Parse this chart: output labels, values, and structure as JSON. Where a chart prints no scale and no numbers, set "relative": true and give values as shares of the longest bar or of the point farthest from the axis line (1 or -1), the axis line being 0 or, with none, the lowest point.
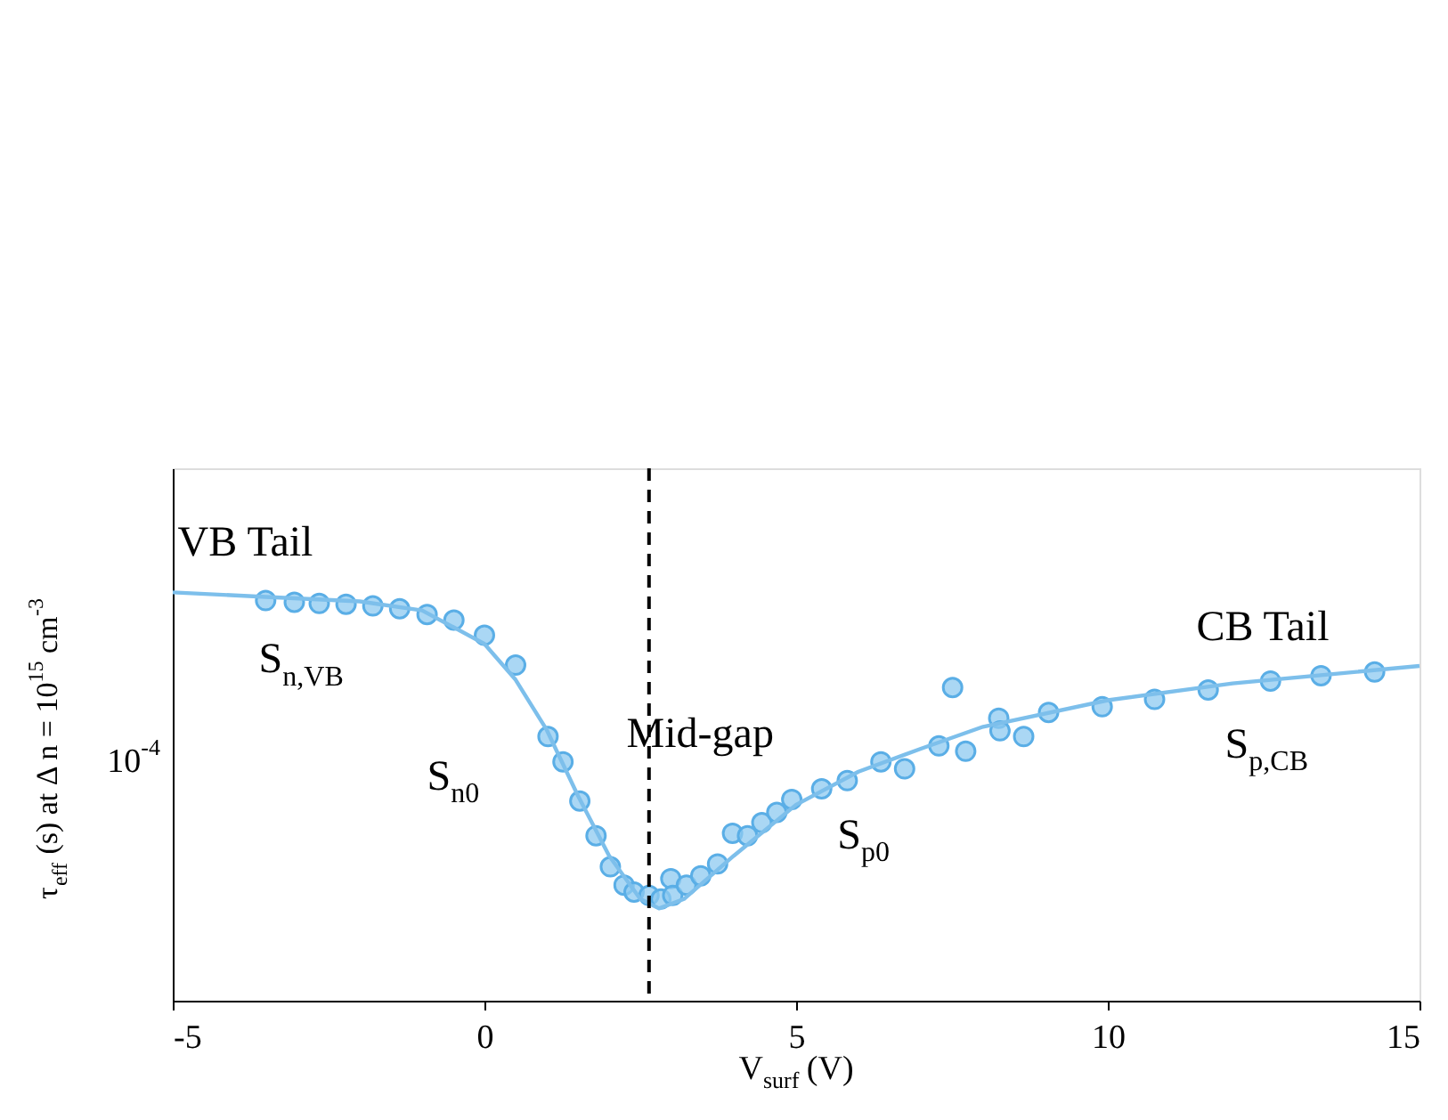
{
  "chart_data": {
    "type": "scatter",
    "xlabel": "V$_{surf}$ (V)",
    "ylabel": "τ$_{eff}$ (s) at Δ n = 10$^{15}$ cm$^{-3}$",
    "relative": true,
    "tick_labels": "x",
    "xlim": [
      -5,
      15
    ],
    "xticks": [
      -5,
      0,
      5,
      10,
      15
    ],
    "grid": false,
    "series": [
      {
        "marker": "circle",
        "color": "#8ec9f0",
        "x": [
          -3.51,
          -3.05,
          -2.65,
          -2.22,
          -1.79,
          -1.36,
          -0.92,
          -0.49,
          0.0,
          0.5,
          1.02,
          1.26,
          1.53,
          1.79,
          2.02,
          2.24,
          2.4,
          2.64,
          2.83,
          2.99,
          3.02,
          3.24,
          3.47,
          3.74,
          3.98,
          4.22,
          4.45,
          4.69,
          4.93,
          5.41,
          5.82,
          6.36,
          6.74,
          7.29,
          7.51,
          7.72,
          8.25,
          8.27,
          8.65,
          9.05,
          9.91,
          10.75,
          11.61,
          12.61,
          13.42,
          14.28
        ],
        "values": [
          0.98,
          0.976,
          0.973,
          0.971,
          0.967,
          0.96,
          0.946,
          0.932,
          0.895,
          0.822,
          0.647,
          0.585,
          0.489,
          0.404,
          0.328,
          0.283,
          0.266,
          0.258,
          0.249,
          0.299,
          0.258,
          0.283,
          0.306,
          0.335,
          0.41,
          0.404,
          0.436,
          0.461,
          0.493,
          0.519,
          0.539,
          0.585,
          0.568,
          0.624,
          0.767,
          0.611,
          0.692,
          0.661,
          0.647,
          0.706,
          0.72,
          0.738,
          0.761,
          0.783,
          0.796,
          0.805
        ]
      },
      {
        "type": "line",
        "line_style": "solid",
        "color": "#7dbfeb",
        "x": [
          -5,
          -3.5,
          -2,
          -1,
          0,
          0.5,
          1,
          1.5,
          2,
          2.5,
          2.8,
          3.2,
          4,
          5,
          6,
          7,
          8,
          10,
          12,
          15
        ],
        "values": [
          1.0,
          0.989,
          0.978,
          0.956,
          0.874,
          0.786,
          0.663,
          0.502,
          0.355,
          0.249,
          0.226,
          0.249,
          0.355,
          0.48,
          0.561,
          0.617,
          0.671,
          0.736,
          0.777,
          0.82
        ]
      }
    ],
    "ref_lines": [
      {
        "axis": "x",
        "value": 2.64,
        "color": "#000000",
        "line_style": "dashed"
      }
    ],
    "annotations": [
      "VB Tail",
      "S$_{n,VB}$",
      "S$_{n0}$",
      "Mid-gap",
      "S$_{p0}$",
      "CB Tail",
      "S$_{p,CB}$",
      "10$^{-4}$"
    ]
  }
}
